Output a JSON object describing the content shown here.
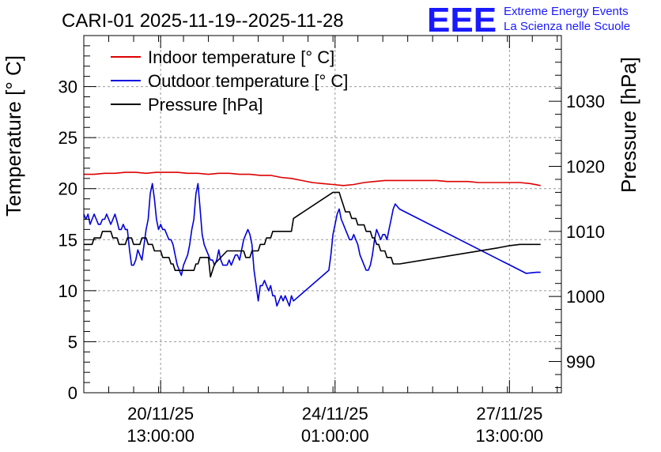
{
  "header": {
    "title": "CARI-01 2025-11-19--2025-11-28",
    "logo_text": "EEE",
    "org_line1": "Extreme Energy Events",
    "org_line2": "La Scienza nelle Scuole"
  },
  "colors": {
    "indoor": "#dd0000",
    "outdoor": "#0000dd",
    "pressure": "#000000",
    "logo": "#1a1aff",
    "grid": "#999999"
  },
  "chart_data": {
    "type": "line",
    "title": "CARI-01 2025-11-19--2025-11-28",
    "xlabel": "",
    "ylabel": "Temperature [° C]",
    "y2label": "Pressure [hPa]",
    "x_unit": "hours since 2025-11-19 00:00",
    "xlim": [
      0,
      230
    ],
    "ylim": [
      0,
      35
    ],
    "y2lim": [
      985.2,
      1040.1
    ],
    "grid": true,
    "legend_position": "top-left",
    "x_ticks": [
      {
        "x": 37,
        "line1": "20/11/25",
        "line2": "13:00:00"
      },
      {
        "x": 121,
        "line1": "24/11/25",
        "line2": "01:00:00"
      },
      {
        "x": 205,
        "line1": "27/11/25",
        "line2": "13:00:00"
      }
    ],
    "y_ticks": [
      0,
      5,
      10,
      15,
      20,
      25,
      30
    ],
    "y2_ticks": [
      990,
      1000,
      1010,
      1020,
      1030
    ],
    "series": [
      {
        "name": "Indoor temperature [° C]",
        "axis": "left",
        "color": "#dd0000",
        "x": [
          0,
          5,
          10,
          15,
          20,
          25,
          30,
          35,
          40,
          45,
          50,
          55,
          60,
          65,
          70,
          75,
          80,
          85,
          90,
          95,
          100,
          105,
          110,
          115,
          120,
          125,
          130,
          135,
          140,
          145,
          150,
          155,
          160,
          165,
          170,
          175,
          180,
          185,
          190,
          195,
          200,
          205,
          210,
          215,
          220
        ],
        "values": [
          21.4,
          21.4,
          21.5,
          21.5,
          21.6,
          21.6,
          21.5,
          21.6,
          21.6,
          21.6,
          21.5,
          21.5,
          21.4,
          21.5,
          21.5,
          21.4,
          21.4,
          21.3,
          21.3,
          21.1,
          21.0,
          20.8,
          20.6,
          20.5,
          20.4,
          20.3,
          20.4,
          20.6,
          20.7,
          20.8,
          20.8,
          20.8,
          20.8,
          20.8,
          20.8,
          20.7,
          20.7,
          20.7,
          20.6,
          20.6,
          20.6,
          20.6,
          20.6,
          20.5,
          20.3
        ]
      },
      {
        "name": "Outdoor temperature [° C]",
        "axis": "left",
        "color": "#0000dd",
        "x": [
          0,
          1,
          2,
          3,
          4,
          5,
          6,
          7,
          8,
          9,
          10,
          11,
          12,
          13,
          14,
          15,
          16,
          17,
          18,
          19,
          20,
          21,
          22,
          23,
          24,
          25,
          26,
          27,
          28,
          29,
          30,
          31,
          32,
          33,
          34,
          35,
          36,
          37,
          38,
          39,
          40,
          41,
          42,
          43,
          44,
          45,
          46,
          47,
          48,
          49,
          50,
          51,
          52,
          53,
          54,
          55,
          56,
          57,
          58,
          59,
          60,
          61,
          62,
          63,
          64,
          65,
          66,
          67,
          68,
          69,
          70,
          71,
          72,
          73,
          74,
          75,
          76,
          77,
          78,
          79,
          80,
          81,
          82,
          83,
          84,
          85,
          86,
          87,
          88,
          89,
          90,
          91,
          92,
          93,
          94,
          95,
          96,
          97,
          98,
          99,
          100,
          101,
          118,
          119,
          120,
          121,
          122,
          123,
          124,
          125,
          126,
          127,
          128,
          129,
          130,
          131,
          132,
          133,
          134,
          135,
          136,
          137,
          138,
          139,
          140,
          141,
          142,
          143,
          144,
          145,
          146,
          147,
          148,
          149,
          150,
          152,
          213,
          218,
          220
        ],
        "values": [
          17.5,
          17.0,
          17.5,
          16.5,
          17.0,
          17.5,
          17.0,
          16.5,
          16.5,
          17.0,
          17.0,
          17.5,
          17.0,
          16.5,
          17.0,
          17.5,
          16.8,
          16.0,
          16.0,
          16.5,
          16.0,
          16.0,
          14.0,
          12.5,
          12.5,
          13.0,
          14.0,
          13.5,
          13.0,
          14.5,
          16.0,
          17.0,
          19.5,
          20.5,
          19.0,
          17.0,
          16.0,
          16.5,
          16.0,
          16.0,
          15.5,
          15.0,
          15.0,
          14.5,
          13.5,
          12.5,
          12.0,
          11.5,
          12.5,
          13.0,
          13.5,
          14.5,
          16.0,
          17.0,
          19.5,
          20.5,
          18.0,
          15.5,
          14.5,
          14.0,
          13.5,
          13.0,
          13.0,
          12.5,
          13.0,
          14.0,
          13.0,
          12.5,
          12.5,
          12.5,
          13.0,
          12.5,
          13.0,
          13.5,
          13.5,
          13.0,
          14.0,
          15.0,
          15.5,
          16.0,
          15.5,
          14.5,
          12.0,
          10.5,
          9.0,
          10.5,
          10.5,
          11.0,
          10.5,
          10.0,
          10.5,
          9.5,
          9.5,
          8.5,
          9.0,
          9.5,
          9.0,
          9.5,
          9.0,
          8.5,
          9.5,
          9.0,
          12.0,
          13.5,
          15.5,
          16.5,
          17.5,
          18.0,
          17.0,
          16.5,
          16.0,
          15.5,
          15.0,
          15.0,
          15.5,
          15.0,
          14.5,
          13.5,
          13.0,
          12.5,
          12.0,
          12.0,
          12.5,
          13.5,
          15.0,
          16.0,
          15.5,
          15.0,
          15.5,
          15.5,
          15.0,
          16.0,
          17.0,
          18.0,
          18.5,
          18.0,
          11.7,
          11.8,
          11.8
        ]
      },
      {
        "name": "Pressure [hPa]",
        "axis": "right",
        "color": "#000000",
        "x": [
          0,
          4,
          5,
          8,
          9,
          13,
          14,
          16,
          17,
          20,
          21,
          23,
          24,
          27,
          28,
          30,
          31,
          33,
          34,
          37,
          38,
          41,
          42,
          43,
          44,
          45,
          46,
          47,
          48,
          49,
          50,
          53,
          54,
          55,
          56,
          57,
          58,
          60,
          61,
          62,
          63,
          69,
          70,
          73,
          74,
          77,
          78,
          80,
          81,
          84,
          85,
          87,
          88,
          90,
          91,
          94,
          95,
          96,
          97,
          98,
          99,
          100,
          101,
          120,
          121,
          122,
          123,
          124,
          125,
          126,
          127,
          128,
          129,
          130,
          131,
          132,
          133,
          134,
          135,
          136,
          137,
          138,
          139,
          140,
          141,
          142,
          143,
          144,
          145,
          146,
          147,
          148,
          149,
          150,
          152,
          200,
          205,
          210,
          215,
          220
        ],
        "values": [
          1008.0,
          1008.0,
          1009.0,
          1009.0,
          1010.0,
          1010.0,
          1009.0,
          1009.0,
          1008.0,
          1008.0,
          1009.0,
          1009.0,
          1008.0,
          1008.0,
          1009.0,
          1009.0,
          1008.0,
          1008.0,
          1007.0,
          1007.0,
          1006.0,
          1006.0,
          1005.0,
          1005.0,
          1004.0,
          1004.0,
          1004.0,
          1004.0,
          1004.0,
          1004.0,
          1004.0,
          1004.0,
          1005.0,
          1005.0,
          1006.0,
          1006.0,
          1006.0,
          1006.0,
          1003.0,
          1004.0,
          1005.0,
          1007.0,
          1007.0,
          1007.0,
          1007.0,
          1007.0,
          1006.0,
          1006.0,
          1007.0,
          1007.0,
          1008.0,
          1008.0,
          1009.0,
          1009.0,
          1010.0,
          1010.0,
          1010.0,
          1010.0,
          1010.0,
          1010.0,
          1010.0,
          1010.0,
          1012.0,
          1016.0,
          1016.0,
          1016.0,
          1016.0,
          1015.0,
          1014.0,
          1013.0,
          1013.0,
          1013.0,
          1012.0,
          1012.0,
          1012.0,
          1011.0,
          1011.0,
          1011.0,
          1011.0,
          1010.0,
          1010.0,
          1010.0,
          1009.0,
          1009.0,
          1008.0,
          1008.0,
          1007.0,
          1007.0,
          1007.0,
          1006.0,
          1006.0,
          1006.0,
          1005.0,
          1005.0,
          1005.0,
          1007.5,
          1007.8,
          1008.0,
          1008.0,
          1008.0
        ]
      }
    ]
  }
}
